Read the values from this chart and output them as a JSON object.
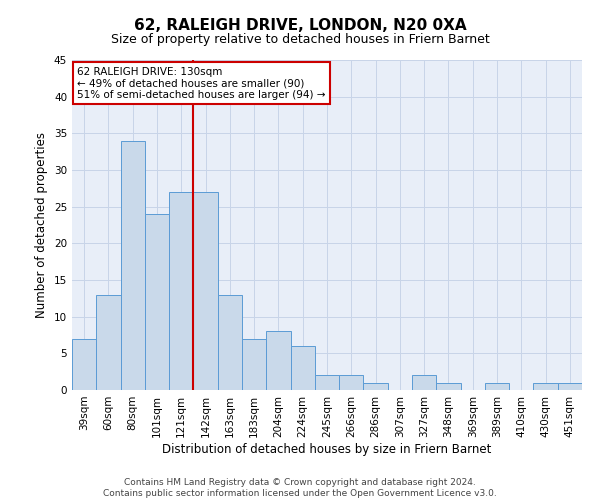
{
  "title": "62, RALEIGH DRIVE, LONDON, N20 0XA",
  "subtitle": "Size of property relative to detached houses in Friern Barnet",
  "xlabel": "Distribution of detached houses by size in Friern Barnet",
  "ylabel": "Number of detached properties",
  "footer_line1": "Contains HM Land Registry data © Crown copyright and database right 2024.",
  "footer_line2": "Contains public sector information licensed under the Open Government Licence v3.0.",
  "categories": [
    "39sqm",
    "60sqm",
    "80sqm",
    "101sqm",
    "121sqm",
    "142sqm",
    "163sqm",
    "183sqm",
    "204sqm",
    "224sqm",
    "245sqm",
    "266sqm",
    "286sqm",
    "307sqm",
    "327sqm",
    "348sqm",
    "369sqm",
    "389sqm",
    "410sqm",
    "430sqm",
    "451sqm"
  ],
  "values": [
    7,
    13,
    34,
    24,
    27,
    27,
    13,
    7,
    8,
    6,
    2,
    2,
    1,
    0,
    2,
    1,
    0,
    1,
    0,
    1,
    1
  ],
  "bar_color": "#c9d9ea",
  "bar_edge_color": "#5b9bd5",
  "annotation_text": "62 RALEIGH DRIVE: 130sqm\n← 49% of detached houses are smaller (90)\n51% of semi-detached houses are larger (94) →",
  "annotation_box_color": "#ffffff",
  "annotation_box_edgecolor": "#cc0000",
  "vline_x": 4.5,
  "vline_color": "#cc0000",
  "ylim": [
    0,
    45
  ],
  "yticks": [
    0,
    5,
    10,
    15,
    20,
    25,
    30,
    35,
    40,
    45
  ],
  "grid_color": "#c8d4e8",
  "background_color": "#e8eef8",
  "title_fontsize": 11,
  "subtitle_fontsize": 9,
  "xlabel_fontsize": 8.5,
  "ylabel_fontsize": 8.5,
  "tick_fontsize": 7.5,
  "annotation_fontsize": 7.5,
  "footer_fontsize": 6.5
}
